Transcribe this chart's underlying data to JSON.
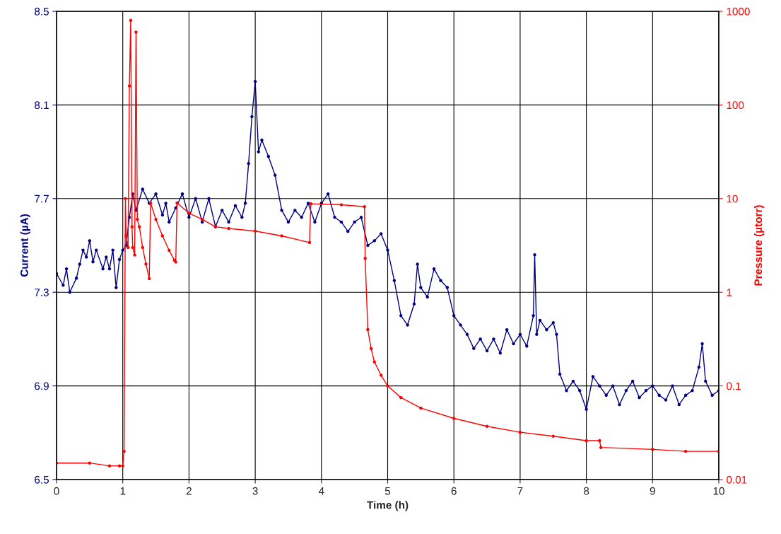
{
  "chart_data": {
    "type": "line",
    "xlabel": "Time (h)",
    "ylabel": "Current (µA)",
    "y2label": "Pressure (µtorr)",
    "xlim": [
      0,
      10
    ],
    "xticks": [
      0,
      1,
      2,
      3,
      4,
      5,
      6,
      7,
      8,
      9,
      10
    ],
    "ylim": [
      6.5,
      8.5
    ],
    "yticks": [
      {
        "value": 6.5,
        "label": "6.5"
      },
      {
        "value": 6.9,
        "label": "6.9"
      },
      {
        "value": 7.3,
        "label": "7.3"
      },
      {
        "value": 7.7,
        "label": "7.7"
      },
      {
        "value": 8.1,
        "label": "8.1"
      },
      {
        "value": 8.5,
        "label": "8.5"
      }
    ],
    "y2lim": [
      0.01,
      1000
    ],
    "y2ticks": [
      0.01,
      0.1,
      1,
      10,
      100,
      1000
    ],
    "log": "y2",
    "grid": true,
    "marker": "circle",
    "line_style": "solid",
    "series": [
      {
        "color": "#000080",
        "x": [
          0,
          0.1,
          0.15,
          0.2,
          0.3,
          0.35,
          0.4,
          0.45,
          0.5,
          0.55,
          0.6,
          0.7,
          0.75,
          0.8,
          0.85,
          0.9,
          0.95,
          1.0,
          1.05,
          1.1,
          1.15,
          1.2,
          1.3,
          1.4,
          1.5,
          1.6,
          1.65,
          1.7,
          1.8,
          1.9,
          2.0,
          2.1,
          2.2,
          2.3,
          2.4,
          2.5,
          2.6,
          2.7,
          2.8,
          2.85,
          2.9,
          2.95,
          3.0,
          3.05,
          3.1,
          3.2,
          3.3,
          3.4,
          3.5,
          3.6,
          3.7,
          3.8,
          3.9,
          4.0,
          4.1,
          4.2,
          4.3,
          4.4,
          4.5,
          4.6,
          4.7,
          4.8,
          4.9,
          5.0,
          5.1,
          5.2,
          5.3,
          5.4,
          5.45,
          5.5,
          5.6,
          5.7,
          5.8,
          5.9,
          6.0,
          6.1,
          6.2,
          6.3,
          6.4,
          6.5,
          6.6,
          6.7,
          6.8,
          6.9,
          7.0,
          7.1,
          7.2,
          7.22,
          7.25,
          7.3,
          7.4,
          7.5,
          7.55,
          7.6,
          7.7,
          7.8,
          7.9,
          8.0,
          8.1,
          8.2,
          8.3,
          8.4,
          8.5,
          8.6,
          8.7,
          8.8,
          8.9,
          9.0,
          9.1,
          9.2,
          9.3,
          9.4,
          9.5,
          9.6,
          9.7,
          9.75,
          9.8,
          9.9,
          10.0
        ],
        "values": [
          7.38,
          7.33,
          7.4,
          7.3,
          7.36,
          7.42,
          7.48,
          7.45,
          7.52,
          7.43,
          7.48,
          7.4,
          7.45,
          7.4,
          7.48,
          7.32,
          7.44,
          7.48,
          7.5,
          7.62,
          7.72,
          7.65,
          7.74,
          7.68,
          7.72,
          7.63,
          7.68,
          7.6,
          7.66,
          7.72,
          7.62,
          7.7,
          7.6,
          7.7,
          7.58,
          7.65,
          7.6,
          7.67,
          7.62,
          7.68,
          7.85,
          8.05,
          8.2,
          7.9,
          7.95,
          7.88,
          7.8,
          7.65,
          7.6,
          7.65,
          7.62,
          7.68,
          7.6,
          7.68,
          7.72,
          7.62,
          7.6,
          7.56,
          7.6,
          7.62,
          7.5,
          7.52,
          7.55,
          7.48,
          7.35,
          7.2,
          7.16,
          7.25,
          7.42,
          7.32,
          7.28,
          7.4,
          7.35,
          7.32,
          7.2,
          7.16,
          7.12,
          7.06,
          7.1,
          7.05,
          7.1,
          7.04,
          7.14,
          7.08,
          7.12,
          7.07,
          7.2,
          7.46,
          7.12,
          7.18,
          7.14,
          7.17,
          7.12,
          6.95,
          6.88,
          6.92,
          6.88,
          6.8,
          6.94,
          6.9,
          6.86,
          6.9,
          6.82,
          6.88,
          6.92,
          6.85,
          6.88,
          6.9,
          6.86,
          6.84,
          6.9,
          6.82,
          6.86,
          6.88,
          6.98,
          7.08,
          6.92,
          6.86,
          6.88
        ]
      },
      {
        "color": "#ff0000",
        "axis": "y2",
        "x": [
          0,
          0.5,
          0.8,
          0.95,
          1.0,
          1.02,
          1.04,
          1.05,
          1.08,
          1.1,
          1.12,
          1.14,
          1.15,
          1.18,
          1.2,
          1.22,
          1.25,
          1.3,
          1.35,
          1.4,
          1.42,
          1.5,
          1.6,
          1.7,
          1.78,
          1.8,
          1.82,
          2.0,
          2.2,
          2.4,
          2.6,
          3.0,
          3.4,
          3.82,
          3.84,
          4.3,
          4.65,
          4.66,
          4.7,
          4.75,
          4.8,
          4.9,
          5.0,
          5.2,
          5.5,
          6.0,
          6.5,
          7.0,
          7.5,
          8.0,
          8.2,
          8.22,
          9.0,
          9.5,
          10.0
        ],
        "values": [
          0.015,
          0.015,
          0.014,
          0.014,
          0.014,
          0.02,
          10,
          4,
          3,
          160,
          800,
          5,
          3,
          2.5,
          600,
          6,
          5,
          3,
          2,
          1.4,
          9,
          6,
          4,
          2.8,
          2.2,
          2.1,
          9,
          7,
          6,
          5,
          4.8,
          4.5,
          4,
          3.4,
          8.8,
          8.6,
          8.2,
          2.3,
          0.4,
          0.25,
          0.18,
          0.13,
          0.1,
          0.075,
          0.058,
          0.045,
          0.037,
          0.032,
          0.029,
          0.026,
          0.026,
          0.022,
          0.021,
          0.02,
          0.02
        ]
      }
    ]
  }
}
